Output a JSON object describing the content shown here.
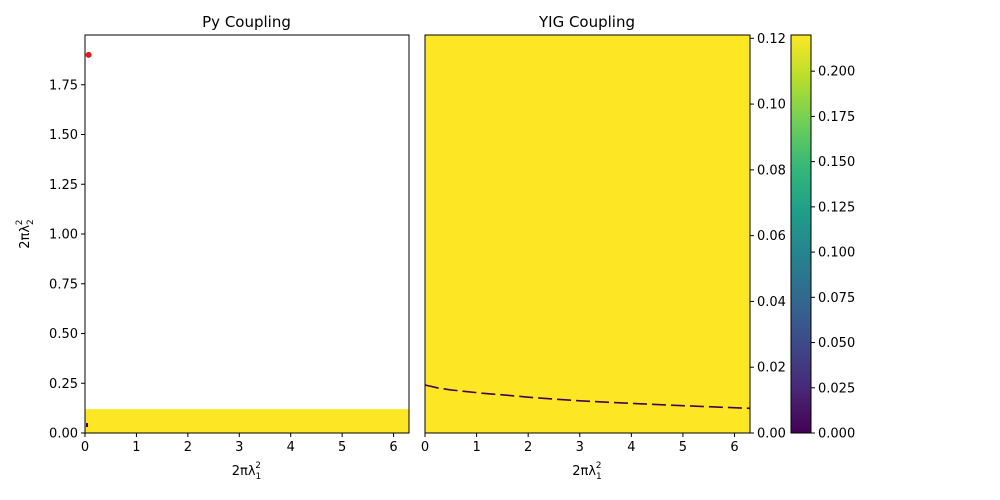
{
  "chart_data": [
    {
      "type": "heatmap",
      "title": "Py Coupling",
      "xlabel": "2πλ",
      "xlabel_sup": "2",
      "xlabel_sub": "1",
      "ylabel": "2πλ",
      "ylabel_sup": "2",
      "ylabel_sub": "2",
      "xlim": [
        0,
        6.3
      ],
      "ylim": [
        0,
        2.0
      ],
      "x_ticks": [
        0,
        1,
        2,
        3,
        4,
        5,
        6
      ],
      "x_tick_labels": [
        "0",
        "1",
        "2",
        "3",
        "4",
        "5",
        "6"
      ],
      "y_ticks": [
        0,
        0.25,
        0.5,
        0.75,
        1.0,
        1.25,
        1.5,
        1.75
      ],
      "y_tick_labels": [
        "0.00",
        "0.25",
        "0.50",
        "0.75",
        "1.00",
        "1.25",
        "1.50",
        "1.75"
      ],
      "filled_region": {
        "x": [
          0,
          6.3
        ],
        "y": [
          0,
          0.12
        ],
        "value": 0.22,
        "color": "#fde725"
      },
      "markers": [
        {
          "x": 0.07,
          "y": 1.9,
          "color": "#e41a1c"
        }
      ],
      "dark_segments": [
        {
          "x": [
            0.02,
            0.04
          ],
          "y": [
            0.03,
            0.05
          ],
          "color": "#440154"
        }
      ],
      "grid": false
    },
    {
      "type": "heatmap",
      "title": "YIG Coupling",
      "xlabel": "2πλ",
      "xlabel_sup": "2",
      "xlabel_sub": "1",
      "xlim": [
        0,
        6.3
      ],
      "ylim": [
        0,
        0.121
      ],
      "x_ticks": [
        0,
        1,
        2,
        3,
        4,
        5,
        6
      ],
      "x_tick_labels": [
        "0",
        "1",
        "2",
        "3",
        "4",
        "5",
        "6"
      ],
      "y_ticks": [
        0,
        0.02,
        0.04,
        0.06,
        0.08,
        0.1,
        0.12
      ],
      "y_tick_labels": [
        "0.00",
        "0.02",
        "0.04",
        "0.06",
        "0.08",
        "0.10",
        "0.12"
      ],
      "y_axis_side": "right",
      "background_value": 0.22,
      "background_color": "#fde725",
      "curve_color": "#440154",
      "curve_points": [
        {
          "x": 0.0,
          "y": 0.0146
        },
        {
          "x": 0.25,
          "y": 0.0137
        },
        {
          "x": 0.5,
          "y": 0.0131
        },
        {
          "x": 0.8,
          "y": 0.0126
        },
        {
          "x": 1.1,
          "y": 0.0121
        },
        {
          "x": 1.5,
          "y": 0.0116
        },
        {
          "x": 2.0,
          "y": 0.0109
        },
        {
          "x": 2.5,
          "y": 0.0103
        },
        {
          "x": 3.0,
          "y": 0.0098
        },
        {
          "x": 3.6,
          "y": 0.0093
        },
        {
          "x": 4.3,
          "y": 0.0088
        },
        {
          "x": 5.0,
          "y": 0.0083
        },
        {
          "x": 5.8,
          "y": 0.0078
        },
        {
          "x": 6.3,
          "y": 0.0075
        }
      ],
      "grid": false
    }
  ],
  "colorbar": {
    "colormap": "viridis",
    "colors": [
      "#440154",
      "#482878",
      "#3e4989",
      "#31688e",
      "#26828e",
      "#1f9e89",
      "#35b779",
      "#6ece58",
      "#b5de2b",
      "#fde725"
    ],
    "range": [
      0,
      0.22
    ],
    "ticks": [
      0,
      0.025,
      0.05,
      0.075,
      0.1,
      0.125,
      0.15,
      0.175,
      0.2
    ],
    "tick_labels": [
      "0.000",
      "0.025",
      "0.050",
      "0.075",
      "0.100",
      "0.125",
      "0.150",
      "0.175",
      "0.200"
    ]
  }
}
